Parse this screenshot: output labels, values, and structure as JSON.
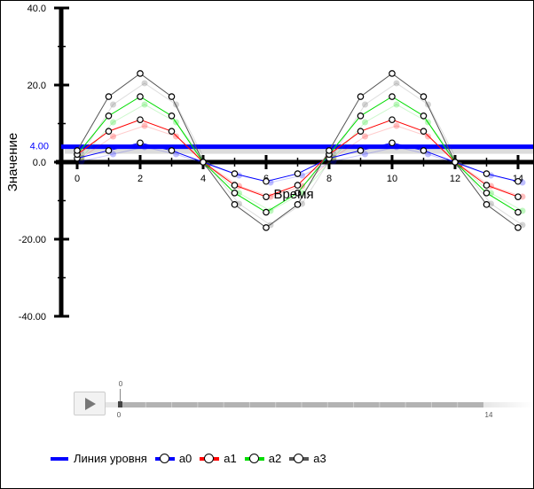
{
  "chart_data": {
    "type": "line",
    "xlabel": "Время",
    "ylabel": "Значение",
    "x": [
      0,
      1,
      2,
      3,
      4,
      5,
      6,
      7,
      8,
      9,
      10,
      11,
      12,
      13,
      14
    ],
    "xlim": [
      0,
      14
    ],
    "ylim": [
      -40,
      40
    ],
    "x_ticks": [
      "0",
      "2",
      "4",
      "6",
      "8",
      "10",
      "12",
      "14"
    ],
    "y_ticks": [
      {
        "value": 40,
        "label": "40.0"
      },
      {
        "value": 20,
        "label": "20.0"
      },
      {
        "value": 0,
        "label": "0.0"
      },
      {
        "value": -20,
        "label": "-20.00"
      },
      {
        "value": -40,
        "label": "-40.00"
      }
    ],
    "level_line": {
      "name": "Линия уровня",
      "value": 4,
      "label": "4.00",
      "color": "#0000ff"
    },
    "series": [
      {
        "name": "a0",
        "color": "#0000ff",
        "values": [
          1,
          3,
          5,
          3,
          0,
          -3,
          -5,
          -3,
          1,
          3,
          5,
          3,
          0,
          -3,
          -5
        ]
      },
      {
        "name": "a1",
        "color": "#ff0000",
        "values": [
          2,
          8,
          11,
          8,
          0,
          -6,
          -9,
          -6,
          2,
          8,
          11,
          8,
          0,
          -6,
          -9
        ]
      },
      {
        "name": "a2",
        "color": "#00dd00",
        "values": [
          2,
          12,
          17,
          12,
          0,
          -8,
          -13,
          -8,
          2,
          12,
          17,
          12,
          0,
          -8,
          -13
        ]
      },
      {
        "name": "a3",
        "color": "#555555",
        "values": [
          3,
          17,
          23,
          17,
          0,
          -11,
          -17,
          -11,
          3,
          17,
          23,
          17,
          0,
          -11,
          -17
        ]
      }
    ],
    "legend": "bottom-left"
  },
  "timeline": {
    "current_label": "0",
    "start_label": "0",
    "end_label": "14",
    "position": 0
  }
}
